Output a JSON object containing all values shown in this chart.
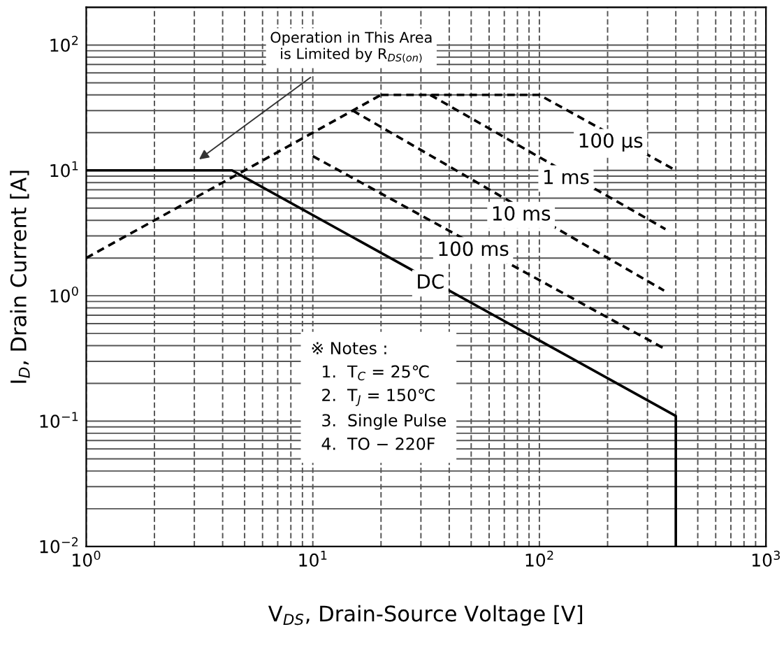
{
  "chart_data": {
    "type": "line",
    "xlabel": "V$_{DS}$, Drain-Source Voltage [V]",
    "ylabel": "I$_{D}$, Drain Current [A]",
    "log": "xy",
    "grid": true,
    "xlim": [
      1,
      1000
    ],
    "ylim": [
      0.01,
      200
    ],
    "xticks": [
      {
        "value": 1,
        "label": "10$^{0}$"
      },
      {
        "value": 10,
        "label": "10$^{1}$"
      },
      {
        "value": 100,
        "label": "10$^{2}$"
      },
      {
        "value": 1000,
        "label": "10$^{3}$"
      }
    ],
    "yticks": [
      {
        "value": 0.01,
        "label": "10$^{−2}$"
      },
      {
        "value": 0.1,
        "label": "10$^{−1}$"
      },
      {
        "value": 1,
        "label": "10$^{0}$"
      },
      {
        "value": 10,
        "label": "10$^{1}$"
      },
      {
        "value": 100,
        "label": "10$^{2}$"
      }
    ],
    "series": [
      {
        "color": "#000000",
        "line_style": "dashed",
        "x": [
          1,
          20
        ],
        "values": [
          2,
          40
        ]
      },
      {
        "color": "#000000",
        "line_style": "dashed",
        "x": [
          20,
          100,
          400
        ],
        "values": [
          40,
          40,
          10
        ]
      },
      {
        "color": "#000000",
        "line_style": "dashed",
        "x": [
          33,
          360
        ],
        "values": [
          40,
          3.4
        ]
      },
      {
        "color": "#000000",
        "line_style": "dashed",
        "x": [
          15,
          355
        ],
        "values": [
          30,
          1.1
        ]
      },
      {
        "color": "#000000",
        "line_style": "dashed",
        "x": [
          10,
          355
        ],
        "values": [
          13,
          0.38
        ]
      },
      {
        "color": "#000000",
        "line_style": "solid",
        "x": [
          1,
          4.4,
          400,
          400
        ],
        "values": [
          10,
          10,
          0.11,
          0.01
        ]
      }
    ],
    "annotations": [
      {
        "text": "100 µs",
        "x": 206,
        "y": 16.8
      },
      {
        "text": "1 ms",
        "x": 131,
        "y": 8.6
      },
      {
        "text": "10 ms",
        "x": 83,
        "y": 4.4
      },
      {
        "text": "100 ms",
        "x": 51,
        "y": 2.3
      },
      {
        "text": "DC",
        "x": 33,
        "y": 1.26
      },
      "Operation in This Area\nis Limited by R$_{DS(on)}$",
      "※ Notes :\n  1.  T$_{C}$ = 25℃\n  2.  T$_{J}$ = 150℃\n  3.  Single Pulse\n  4.  TO − 220F"
    ]
  }
}
